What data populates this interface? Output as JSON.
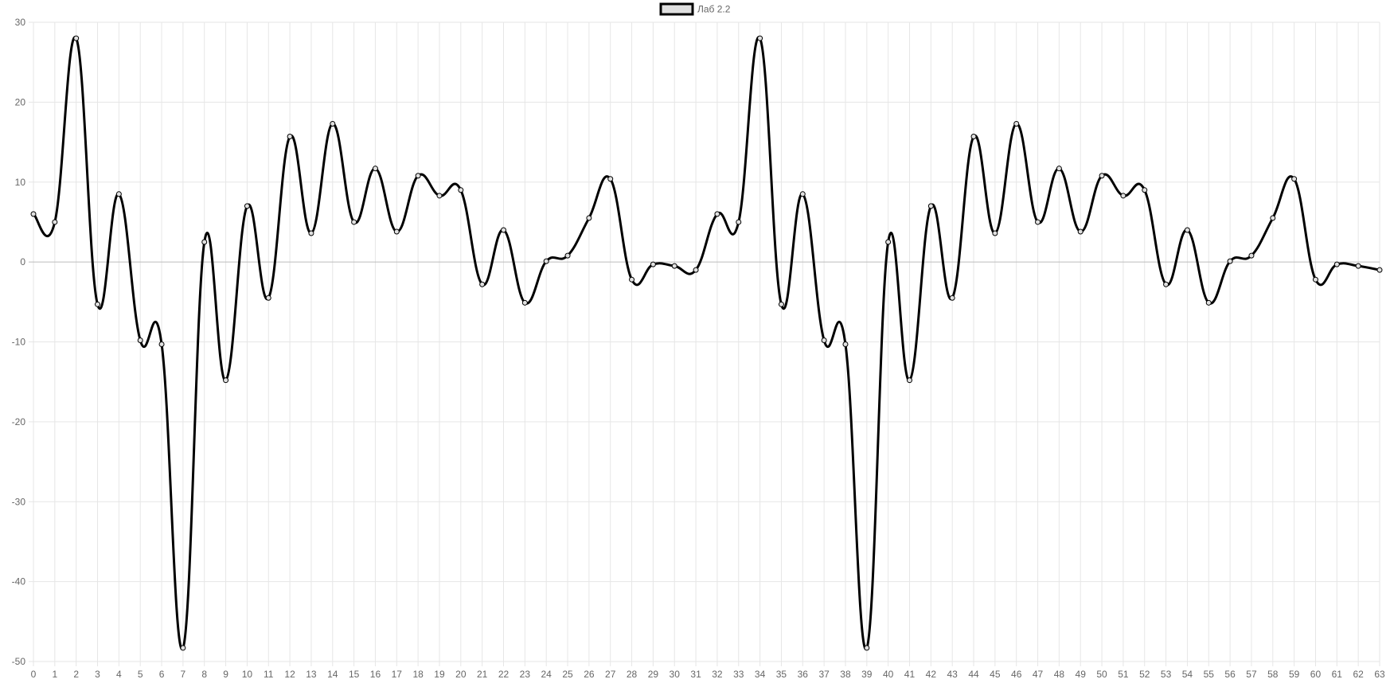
{
  "chart_data": {
    "type": "line",
    "legend": {
      "label": "Лаб 2.2",
      "position": "top-center"
    },
    "x": [
      0,
      1,
      2,
      3,
      4,
      5,
      6,
      7,
      8,
      9,
      10,
      11,
      12,
      13,
      14,
      15,
      16,
      17,
      18,
      19,
      20,
      21,
      22,
      23,
      24,
      25,
      26,
      27,
      28,
      29,
      30,
      31,
      32,
      33,
      34,
      35,
      36,
      37,
      38,
      39,
      40,
      41,
      42,
      43,
      44,
      45,
      46,
      47,
      48,
      49,
      50,
      51,
      52,
      53,
      54,
      55,
      56,
      57,
      58,
      59,
      60,
      61,
      62,
      63
    ],
    "series": [
      {
        "name": "Лаб 2.2",
        "color": "#000000",
        "fill": "#e0e0e0",
        "values": [
          6,
          5,
          28,
          -5.3,
          8.5,
          -9.8,
          -10.3,
          -48.3,
          2.5,
          -14.8,
          7,
          -4.5,
          15.7,
          3.6,
          17.3,
          5,
          11.7,
          3.8,
          10.8,
          8.3,
          9,
          -2.8,
          4,
          -5.1,
          0.1,
          0.8,
          5.5,
          10.4,
          -2.2,
          -0.3,
          -0.5,
          -1,
          6,
          5,
          28,
          -5.3,
          8.5,
          -9.8,
          -10.3,
          -48.3,
          2.5,
          -14.8,
          7,
          -4.5,
          15.7,
          3.6,
          17.3,
          5,
          11.7,
          3.8,
          10.8,
          8.3,
          9,
          -2.8,
          4,
          -5.1,
          0.1,
          0.8,
          5.5,
          10.4,
          -2.2,
          -0.3,
          -0.5,
          -1
        ]
      }
    ],
    "ylim": [
      -50,
      30
    ],
    "yticks": [
      30,
      20,
      10,
      0,
      -10,
      -20,
      -30,
      -40,
      -50
    ],
    "grid": true,
    "title": "",
    "xlabel": "",
    "ylabel": ""
  }
}
